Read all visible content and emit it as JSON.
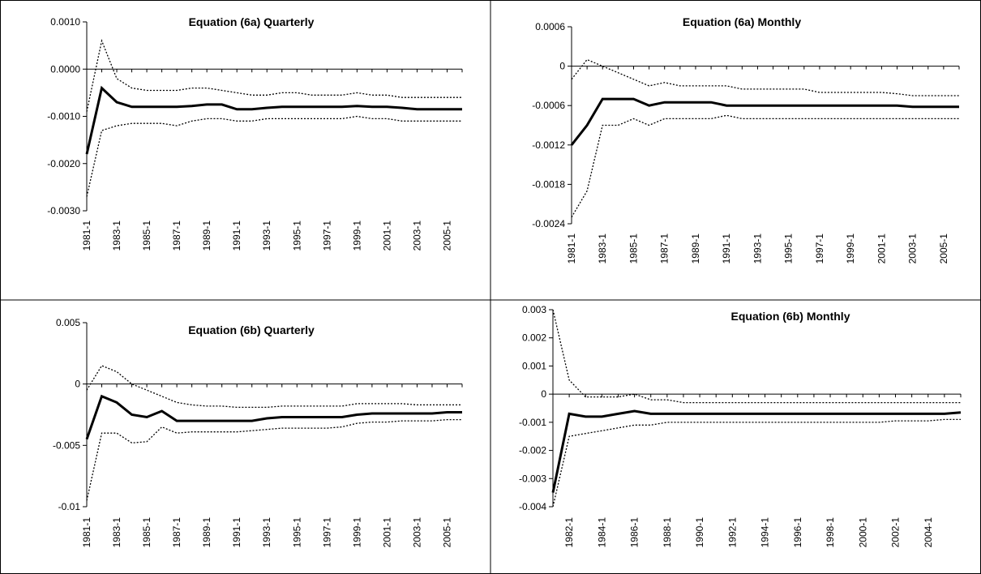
{
  "chart_data": [
    {
      "type": "line",
      "title": "Equation (6a) Quarterly",
      "categories": [
        "1981-1",
        null,
        "1983-1",
        null,
        "1985-1",
        null,
        "1987-1",
        null,
        "1989-1",
        null,
        "1991-1",
        null,
        "1993-1",
        null,
        "1995-1",
        null,
        "1997-1",
        null,
        "1999-1",
        null,
        "2001-1",
        null,
        "2003-1",
        null,
        "2005-1",
        null
      ],
      "series": [
        {
          "color": "#000000",
          "values": [
            -0.0018,
            -0.0004,
            -0.0007,
            -0.0008,
            -0.0008,
            -0.0008,
            -0.0008,
            -0.00078,
            -0.00075,
            -0.00075,
            -0.00085,
            -0.00085,
            -0.00082,
            -0.0008,
            -0.0008,
            -0.0008,
            -0.0008,
            -0.0008,
            -0.00078,
            -0.0008,
            -0.0008,
            -0.00082,
            -0.00085,
            -0.00085,
            -0.00085,
            -0.00085
          ]
        },
        {
          "color": "#000000",
          "values": [
            -0.0009,
            0.0006,
            -0.0002,
            -0.0004,
            -0.00045,
            -0.00045,
            -0.00045,
            -0.0004,
            -0.0004,
            -0.00045,
            -0.0005,
            -0.00055,
            -0.00055,
            -0.0005,
            -0.0005,
            -0.00055,
            -0.00055,
            -0.00055,
            -0.0005,
            -0.00055,
            -0.00055,
            -0.0006,
            -0.0006,
            -0.0006,
            -0.0006,
            -0.0006
          ]
        },
        {
          "color": "#000000",
          "values": [
            -0.0027,
            -0.0013,
            -0.0012,
            -0.00115,
            -0.00115,
            -0.00115,
            -0.0012,
            -0.0011,
            -0.00105,
            -0.00105,
            -0.0011,
            -0.0011,
            -0.00105,
            -0.00105,
            -0.00105,
            -0.00105,
            -0.00105,
            -0.00105,
            -0.001,
            -0.00105,
            -0.00105,
            -0.0011,
            -0.0011,
            -0.0011,
            -0.0011,
            -0.0011
          ]
        }
      ],
      "ylim": [
        -0.003,
        0.001
      ],
      "yticks": [
        {
          "value": 0.001,
          "label": "0.0010"
        },
        {
          "value": 0,
          "label": "0.0000"
        },
        {
          "value": -0.001,
          "label": "-0.0010"
        },
        {
          "value": -0.002,
          "label": "-0.0020"
        },
        {
          "value": -0.003,
          "label": "-0.0030"
        }
      ]
    },
    {
      "type": "line",
      "title": "Equation (6a) Monthly",
      "categories": [
        "1981-1",
        null,
        "1983-1",
        null,
        "1985-1",
        null,
        "1987-1",
        null,
        "1989-1",
        null,
        "1991-1",
        null,
        "1993-1",
        null,
        "1995-1",
        null,
        "1997-1",
        null,
        "1999-1",
        null,
        "2001-1",
        null,
        "2003-1",
        null,
        "2005-1",
        null
      ],
      "series": [
        {
          "color": "#000000",
          "values": [
            -0.0012,
            -0.0009,
            -0.0005,
            -0.0005,
            -0.0005,
            -0.0006,
            -0.00055,
            -0.00055,
            -0.00055,
            -0.00055,
            -0.0006,
            -0.0006,
            -0.0006,
            -0.0006,
            -0.0006,
            -0.0006,
            -0.0006,
            -0.0006,
            -0.0006,
            -0.0006,
            -0.0006,
            -0.0006,
            -0.00062,
            -0.00062,
            -0.00062,
            -0.00062
          ]
        },
        {
          "color": "#000000",
          "values": [
            -0.0002,
            0.0001,
            0,
            -0.0001,
            -0.0002,
            -0.0003,
            -0.00025,
            -0.0003,
            -0.0003,
            -0.0003,
            -0.0003,
            -0.00035,
            -0.00035,
            -0.00035,
            -0.00035,
            -0.00035,
            -0.0004,
            -0.0004,
            -0.0004,
            -0.0004,
            -0.0004,
            -0.00042,
            -0.00045,
            -0.00045,
            -0.00045,
            -0.00045
          ]
        },
        {
          "color": "#000000",
          "values": [
            -0.0023,
            -0.0019,
            -0.0009,
            -0.0009,
            -0.0008,
            -0.0009,
            -0.0008,
            -0.0008,
            -0.0008,
            -0.0008,
            -0.00075,
            -0.0008,
            -0.0008,
            -0.0008,
            -0.0008,
            -0.0008,
            -0.0008,
            -0.0008,
            -0.0008,
            -0.0008,
            -0.0008,
            -0.0008,
            -0.0008,
            -0.0008,
            -0.0008,
            -0.0008
          ]
        }
      ],
      "ylim": [
        -0.0024,
        0.0006
      ],
      "yticks": [
        0.0006,
        0,
        -0.0006,
        -0.0012,
        -0.0018,
        -0.0024
      ]
    },
    {
      "type": "line",
      "title": "Equation (6b) Quarterly",
      "categories": [
        "1981-1",
        null,
        "1983-1",
        null,
        "1985-1",
        null,
        "1987-1",
        null,
        "1989-1",
        null,
        "1991-1",
        null,
        "1993-1",
        null,
        "1995-1",
        null,
        "1997-1",
        null,
        "1999-1",
        null,
        "2001-1",
        null,
        "2003-1",
        null,
        "2005-1",
        null
      ],
      "series": [
        {
          "color": "#000000",
          "values": [
            -0.0045,
            -0.001,
            -0.0015,
            -0.0025,
            -0.0027,
            -0.0022,
            -0.003,
            -0.003,
            -0.003,
            -0.003,
            -0.003,
            -0.003,
            -0.0028,
            -0.0027,
            -0.0027,
            -0.0027,
            -0.0027,
            -0.0027,
            -0.0025,
            -0.0024,
            -0.0024,
            -0.0024,
            -0.0024,
            -0.0024,
            -0.0023,
            -0.0023
          ]
        },
        {
          "color": "#000000",
          "values": [
            -0.0005,
            0.0015,
            0.001,
            0,
            -0.0005,
            -0.001,
            -0.0015,
            -0.0017,
            -0.0018,
            -0.0018,
            -0.0019,
            -0.0019,
            -0.0019,
            -0.0018,
            -0.0018,
            -0.0018,
            -0.0018,
            -0.0018,
            -0.0016,
            -0.0016,
            -0.0016,
            -0.0016,
            -0.0017,
            -0.0017,
            -0.0017,
            -0.0017
          ]
        },
        {
          "color": "#000000",
          "values": [
            -0.0095,
            -0.004,
            -0.004,
            -0.0048,
            -0.0047,
            -0.0035,
            -0.004,
            -0.0039,
            -0.0039,
            -0.0039,
            -0.0039,
            -0.0038,
            -0.0037,
            -0.0036,
            -0.0036,
            -0.0036,
            -0.0036,
            -0.0035,
            -0.0032,
            -0.0031,
            -0.0031,
            -0.003,
            -0.003,
            -0.003,
            -0.0029,
            -0.0029
          ]
        }
      ],
      "ylim": [
        -0.01,
        0.005
      ],
      "yticks": [
        0.005,
        0,
        -0.005,
        -0.01
      ]
    },
    {
      "type": "line",
      "title": "Equation (6b) Monthly",
      "categories": [
        null,
        "1982-1",
        null,
        "1984-1",
        null,
        "1986-1",
        null,
        "1988-1",
        null,
        "1990-1",
        null,
        "1992-1",
        null,
        "1994-1",
        null,
        "1996-1",
        null,
        "1998-1",
        null,
        "2000-1",
        null,
        "2002-1",
        null,
        "2004-1",
        null,
        null
      ],
      "series": [
        {
          "color": "#000000",
          "values": [
            -0.0035,
            -0.0007,
            -0.0008,
            -0.0008,
            -0.0007,
            -0.0006,
            -0.0007,
            -0.0007,
            -0.0007,
            -0.0007,
            -0.0007,
            -0.0007,
            -0.0007,
            -0.0007,
            -0.0007,
            -0.0007,
            -0.0007,
            -0.0007,
            -0.0007,
            -0.0007,
            -0.0007,
            -0.0007,
            -0.0007,
            -0.0007,
            -0.0007,
            -0.00065
          ]
        },
        {
          "color": "#000000",
          "values": [
            0.003,
            0.0005,
            -0.0001,
            -0.0001,
            -0.0001,
            0,
            -0.0002,
            -0.0002,
            -0.0003,
            -0.0003,
            -0.0003,
            -0.0003,
            -0.0003,
            -0.0003,
            -0.0003,
            -0.0003,
            -0.0003,
            -0.0003,
            -0.0003,
            -0.0003,
            -0.0003,
            -0.0003,
            -0.0003,
            -0.0003,
            -0.0003,
            -0.0003
          ]
        },
        {
          "color": "#000000",
          "values": [
            -0.004,
            -0.0015,
            -0.0014,
            -0.0013,
            -0.0012,
            -0.0011,
            -0.0011,
            -0.001,
            -0.001,
            -0.001,
            -0.001,
            -0.001,
            -0.001,
            -0.001,
            -0.001,
            -0.001,
            -0.001,
            -0.001,
            -0.001,
            -0.001,
            -0.001,
            -0.00095,
            -0.00095,
            -0.00095,
            -0.0009,
            -0.0009
          ]
        }
      ],
      "ylim": [
        -0.004,
        0.003
      ],
      "yticks": [
        0.003,
        0.002,
        0.001,
        0,
        -0.001,
        -0.002,
        -0.003,
        -0.004
      ]
    }
  ]
}
